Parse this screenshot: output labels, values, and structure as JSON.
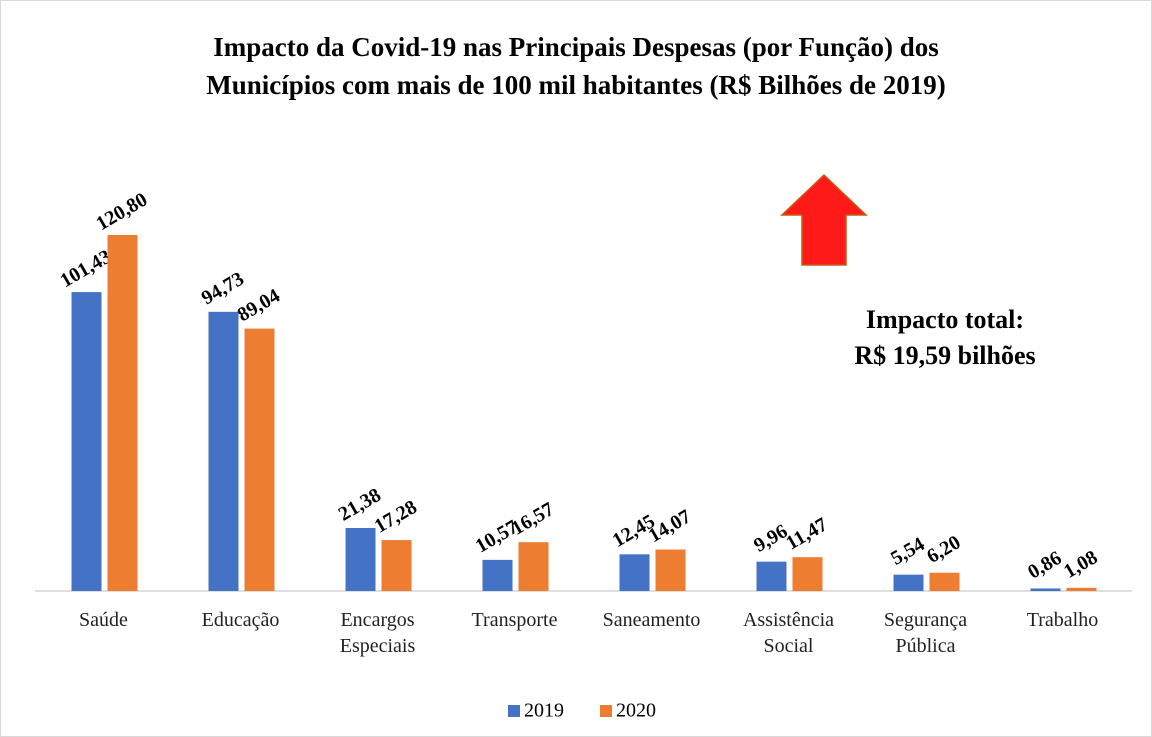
{
  "chart_data": {
    "type": "bar",
    "title": [
      "Impacto da Covid-19 nas Principais Despesas (por Função) dos",
      "Municípios com mais de 100 mil habitantes (R$ Bilhões de 2019)"
    ],
    "categories": [
      "Saúde",
      "Educação",
      "Encargos Especiais",
      "Transporte",
      "Saneamento",
      "Assistência Social",
      "Segurança Pública",
      "Trabalho"
    ],
    "series": [
      {
        "name": "2019",
        "color": "#4472c4",
        "values": [
          101.43,
          94.73,
          21.38,
          10.57,
          12.45,
          9.96,
          5.54,
          0.86
        ],
        "value_labels": [
          "101,43",
          "94,73",
          "21,38",
          "10,57",
          "12,45",
          "9,96",
          "5,54",
          "0,86"
        ]
      },
      {
        "name": "2020",
        "color": "#ed7d31",
        "values": [
          120.8,
          89.04,
          17.28,
          16.57,
          14.07,
          11.47,
          6.2,
          1.08
        ],
        "value_labels": [
          "120,80",
          "89,04",
          "17,28",
          "16,57",
          "14,07",
          "11,47",
          "6,20",
          "1,08"
        ]
      }
    ],
    "annotation": [
      "Impacto total:",
      "R$ 19,59 bilhões"
    ],
    "legend": "bottom"
  }
}
